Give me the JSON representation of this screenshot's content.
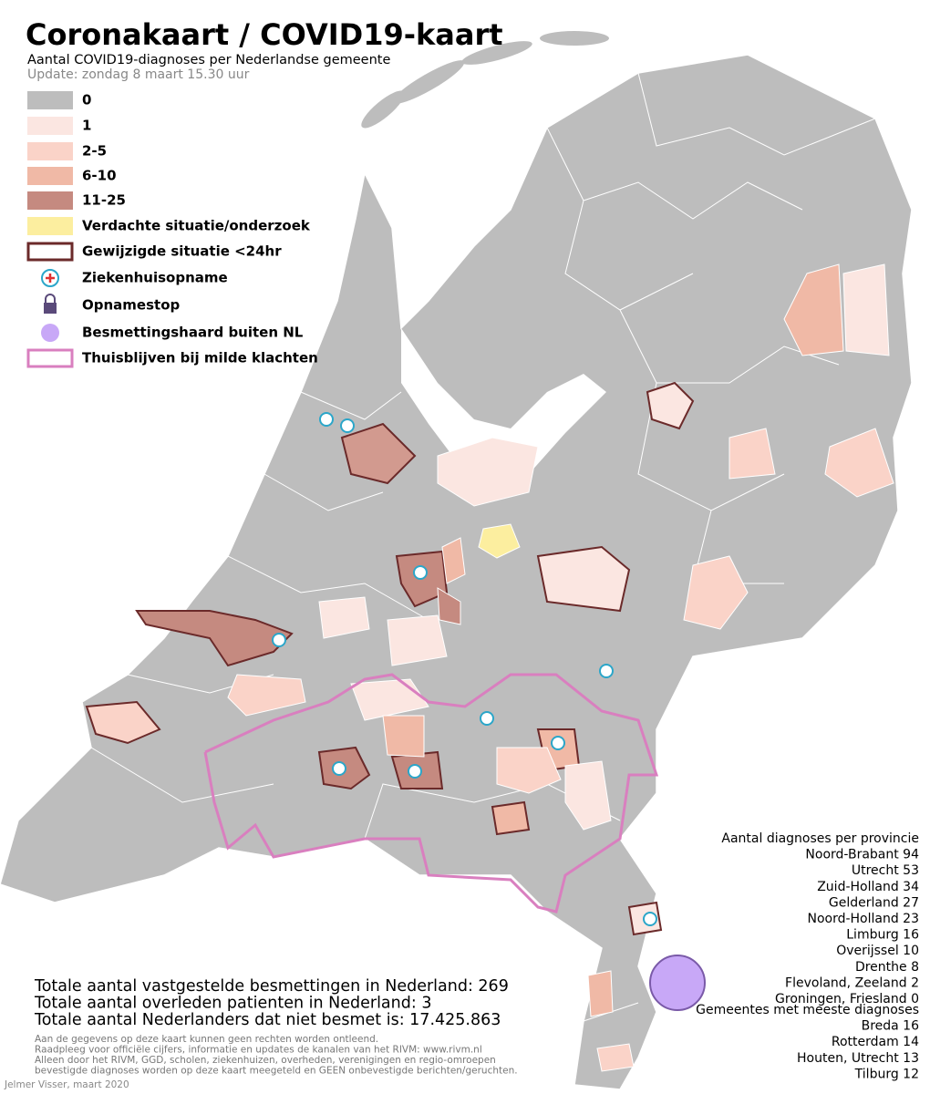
{
  "header": {
    "title": "Coronakaart / COVID19-kaart",
    "subtitle": "Aantal COVID19-diagnoses per Nederlandse gemeente",
    "update": "Update: zondag 8 maart 15.30 uur"
  },
  "legend": [
    "0",
    "1",
    "2-5",
    "6-10",
    "11-25",
    "Verdachte situatie/onderzoek",
    "Gewijzigde situatie <24hr",
    "Ziekenhuisopname",
    "Opnamestop",
    "Besmettingshaard buiten NL",
    "Thuisblijven bij milde klachten"
  ],
  "provinces": {
    "heading": "Aantal diagnoses per provincie",
    "items": [
      "Noord-Brabant 94",
      "Utrecht 53",
      "Zuid-Holland 34",
      "Gelderland 27",
      "Noord-Holland 23",
      "Limburg 16",
      "Overijssel 10",
      "Drenthe 8",
      "Flevoland, Zeeland 2",
      "Groningen, Friesland 0"
    ]
  },
  "municipalities": {
    "heading": "Gemeentes met meeste diagnoses",
    "items": [
      "Breda 16",
      "Rotterdam 14",
      "Houten, Utrecht 13",
      "Tilburg  12"
    ]
  },
  "totals": [
    "Totale aantal vastgestelde besmettingen in Nederland: 269",
    "Totale aantal overleden patienten in Nederland: 3",
    "Totale aantal Nederlanders dat niet besmet is: 17.425.863"
  ],
  "disclaimer": [
    "Aan de gegevens op deze kaart kunnen geen rechten worden ontleend.",
    "Raadpleeg voor officiële cijfers, informatie en updates de kanalen van het RIVM: www.rivm.nl",
    "Alleen door het RIVM, GGD, scholen, ziekenhuizen, overheden, verenigingen en regio-omroepen",
    "bevestigde diagnoses worden op deze kaart meegeteld en GEEN onbevestigde berichten/geruchten."
  ],
  "credit": "Jelmer Visser, maart 2020"
}
